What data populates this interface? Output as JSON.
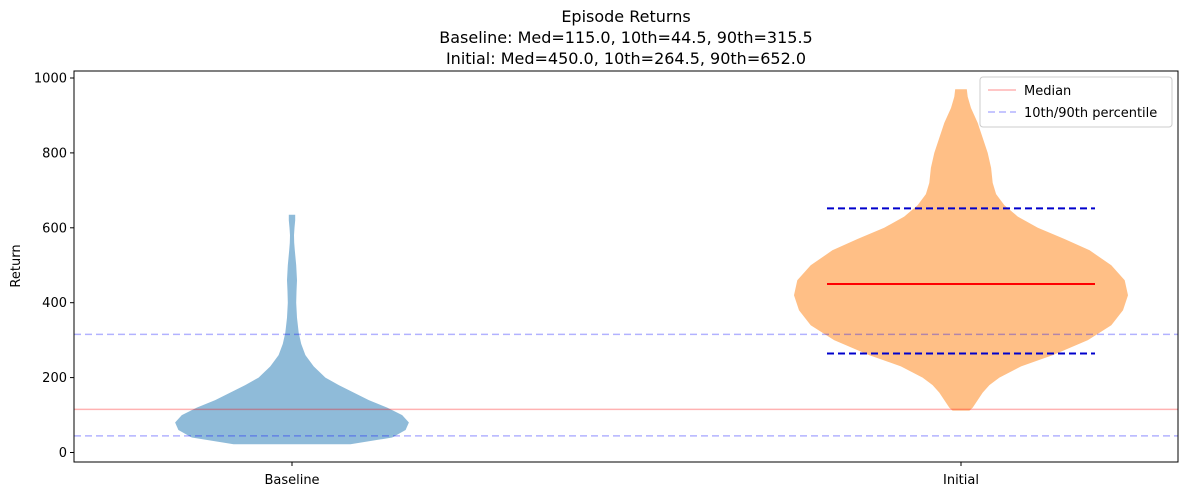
{
  "chart_data": {
    "type": "violin",
    "title": "Episode Returns",
    "subtitle_lines": [
      "Baseline: Med=115.0, 10th=44.5, 90th=315.5",
      "Initial: Med=450.0, 10th=264.5, 90th=652.0"
    ],
    "xlabel": "",
    "ylabel": "Return",
    "categories": [
      "Baseline",
      "Initial"
    ],
    "ylim": [
      -25,
      1020
    ],
    "yticks": [
      0,
      200,
      400,
      600,
      800,
      1000
    ],
    "grid": false,
    "legend": {
      "placement": "top-right",
      "entries": [
        {
          "label": "Median",
          "style": "solid",
          "color": "#ff0000",
          "opacity": 0.3
        },
        {
          "label": "10th/90th percentile",
          "style": "dashed",
          "color": "#0000ff",
          "opacity": 0.3
        }
      ]
    },
    "series": [
      {
        "category": "Baseline",
        "color": "#1f77b4",
        "median": 115.0,
        "p10": 44.5,
        "p90": 315.5,
        "min": 22,
        "max": 635,
        "density_profile": [
          [
            22,
            0.35
          ],
          [
            40,
            0.6
          ],
          [
            60,
            0.68
          ],
          [
            80,
            0.7
          ],
          [
            100,
            0.66
          ],
          [
            120,
            0.57
          ],
          [
            140,
            0.46
          ],
          [
            160,
            0.37
          ],
          [
            180,
            0.28
          ],
          [
            200,
            0.2
          ],
          [
            230,
            0.13
          ],
          [
            260,
            0.08
          ],
          [
            290,
            0.055
          ],
          [
            320,
            0.04
          ],
          [
            360,
            0.03
          ],
          [
            400,
            0.025
          ],
          [
            430,
            0.027
          ],
          [
            460,
            0.03
          ],
          [
            500,
            0.025
          ],
          [
            540,
            0.017
          ],
          [
            560,
            0.013
          ],
          [
            580,
            0.012
          ],
          [
            600,
            0.015
          ],
          [
            620,
            0.019
          ],
          [
            635,
            0.019
          ]
        ]
      },
      {
        "category": "Initial",
        "color": "#ff7f0e",
        "median": 450.0,
        "p10": 264.5,
        "p90": 652.0,
        "min": 112,
        "max": 970,
        "density_profile": [
          [
            112,
            0.05
          ],
          [
            120,
            0.07
          ],
          [
            140,
            0.1
          ],
          [
            160,
            0.13
          ],
          [
            180,
            0.17
          ],
          [
            200,
            0.23
          ],
          [
            230,
            0.36
          ],
          [
            260,
            0.55
          ],
          [
            300,
            0.76
          ],
          [
            340,
            0.9
          ],
          [
            380,
            0.97
          ],
          [
            420,
            1.0
          ],
          [
            460,
            0.98
          ],
          [
            500,
            0.9
          ],
          [
            540,
            0.77
          ],
          [
            570,
            0.62
          ],
          [
            600,
            0.46
          ],
          [
            630,
            0.34
          ],
          [
            660,
            0.26
          ],
          [
            690,
            0.21
          ],
          [
            720,
            0.19
          ],
          [
            760,
            0.18
          ],
          [
            800,
            0.16
          ],
          [
            840,
            0.13
          ],
          [
            880,
            0.1
          ],
          [
            920,
            0.06
          ],
          [
            950,
            0.04
          ],
          [
            970,
            0.035
          ]
        ]
      }
    ],
    "reference_lines": [
      {
        "type": "median",
        "value": 115.0,
        "style": "solid",
        "color": "#ff0000",
        "opacity": 0.3
      },
      {
        "type": "percentile",
        "value": 44.5,
        "style": "dashed",
        "color": "#0000ff",
        "opacity": 0.3
      },
      {
        "type": "percentile",
        "value": 315.5,
        "style": "dashed",
        "color": "#0000ff",
        "opacity": 0.3
      }
    ],
    "per_violin_lines": [
      {
        "category": "Initial",
        "value": 450.0,
        "style": "solid",
        "color": "#ff0000"
      },
      {
        "category": "Initial",
        "value": 264.5,
        "style": "dashed",
        "color": "#0000cc"
      },
      {
        "category": "Initial",
        "value": 652.0,
        "style": "dashed",
        "color": "#0000cc"
      }
    ]
  }
}
